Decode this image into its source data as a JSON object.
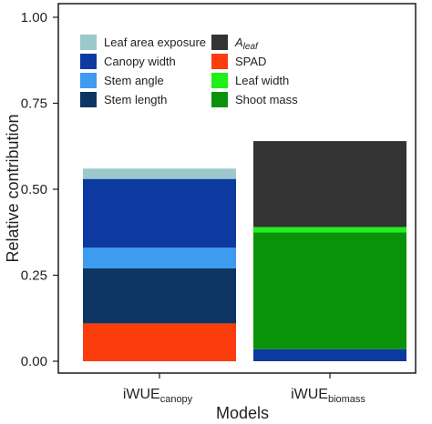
{
  "chart_data": {
    "type": "bar",
    "stacked": true,
    "xlabel": "Models",
    "ylabel": "Relative contribution",
    "ylim": [
      0,
      1
    ],
    "yticks": [
      "0.00",
      "0.25",
      "0.50",
      "0.75",
      "1.00"
    ],
    "categories": [
      {
        "base": "iWUE",
        "sub": "canopy"
      },
      {
        "base": "iWUE",
        "sub": "biomass"
      }
    ],
    "grid": false,
    "legend_position": "top-left (inside plot, two columns)",
    "series": [
      {
        "name": "Leaf area exposure",
        "color": "#9cc8cc",
        "values": [
          0.03,
          0
        ]
      },
      {
        "name": "Canopy width",
        "color": "#0d3aa0",
        "values": [
          0.2,
          0.035
        ]
      },
      {
        "name": "Stem angle",
        "color": "#3d9bf0",
        "values": [
          0.06,
          0
        ]
      },
      {
        "name": "Stem length",
        "color": "#0d3561",
        "values": [
          0.16,
          0
        ]
      },
      {
        "name_base": "A",
        "name_sub": "leaf",
        "color": "#333333",
        "values": [
          0,
          0.25
        ]
      },
      {
        "name": "SPAD",
        "color": "#fb3d0e",
        "values": [
          0.11,
          0
        ]
      },
      {
        "name": "Leaf width",
        "color": "#1ef018",
        "values": [
          0,
          0.015
        ]
      },
      {
        "name": "Shoot mass",
        "color": "#0a930a",
        "values": [
          0,
          0.34
        ]
      }
    ],
    "stack_order_bottom_to_top": [
      "SPAD",
      "Stem length",
      "Stem angle",
      "Canopy width",
      "Leaf area exposure",
      "Shoot mass",
      "Leaf width",
      "A_leaf"
    ]
  }
}
